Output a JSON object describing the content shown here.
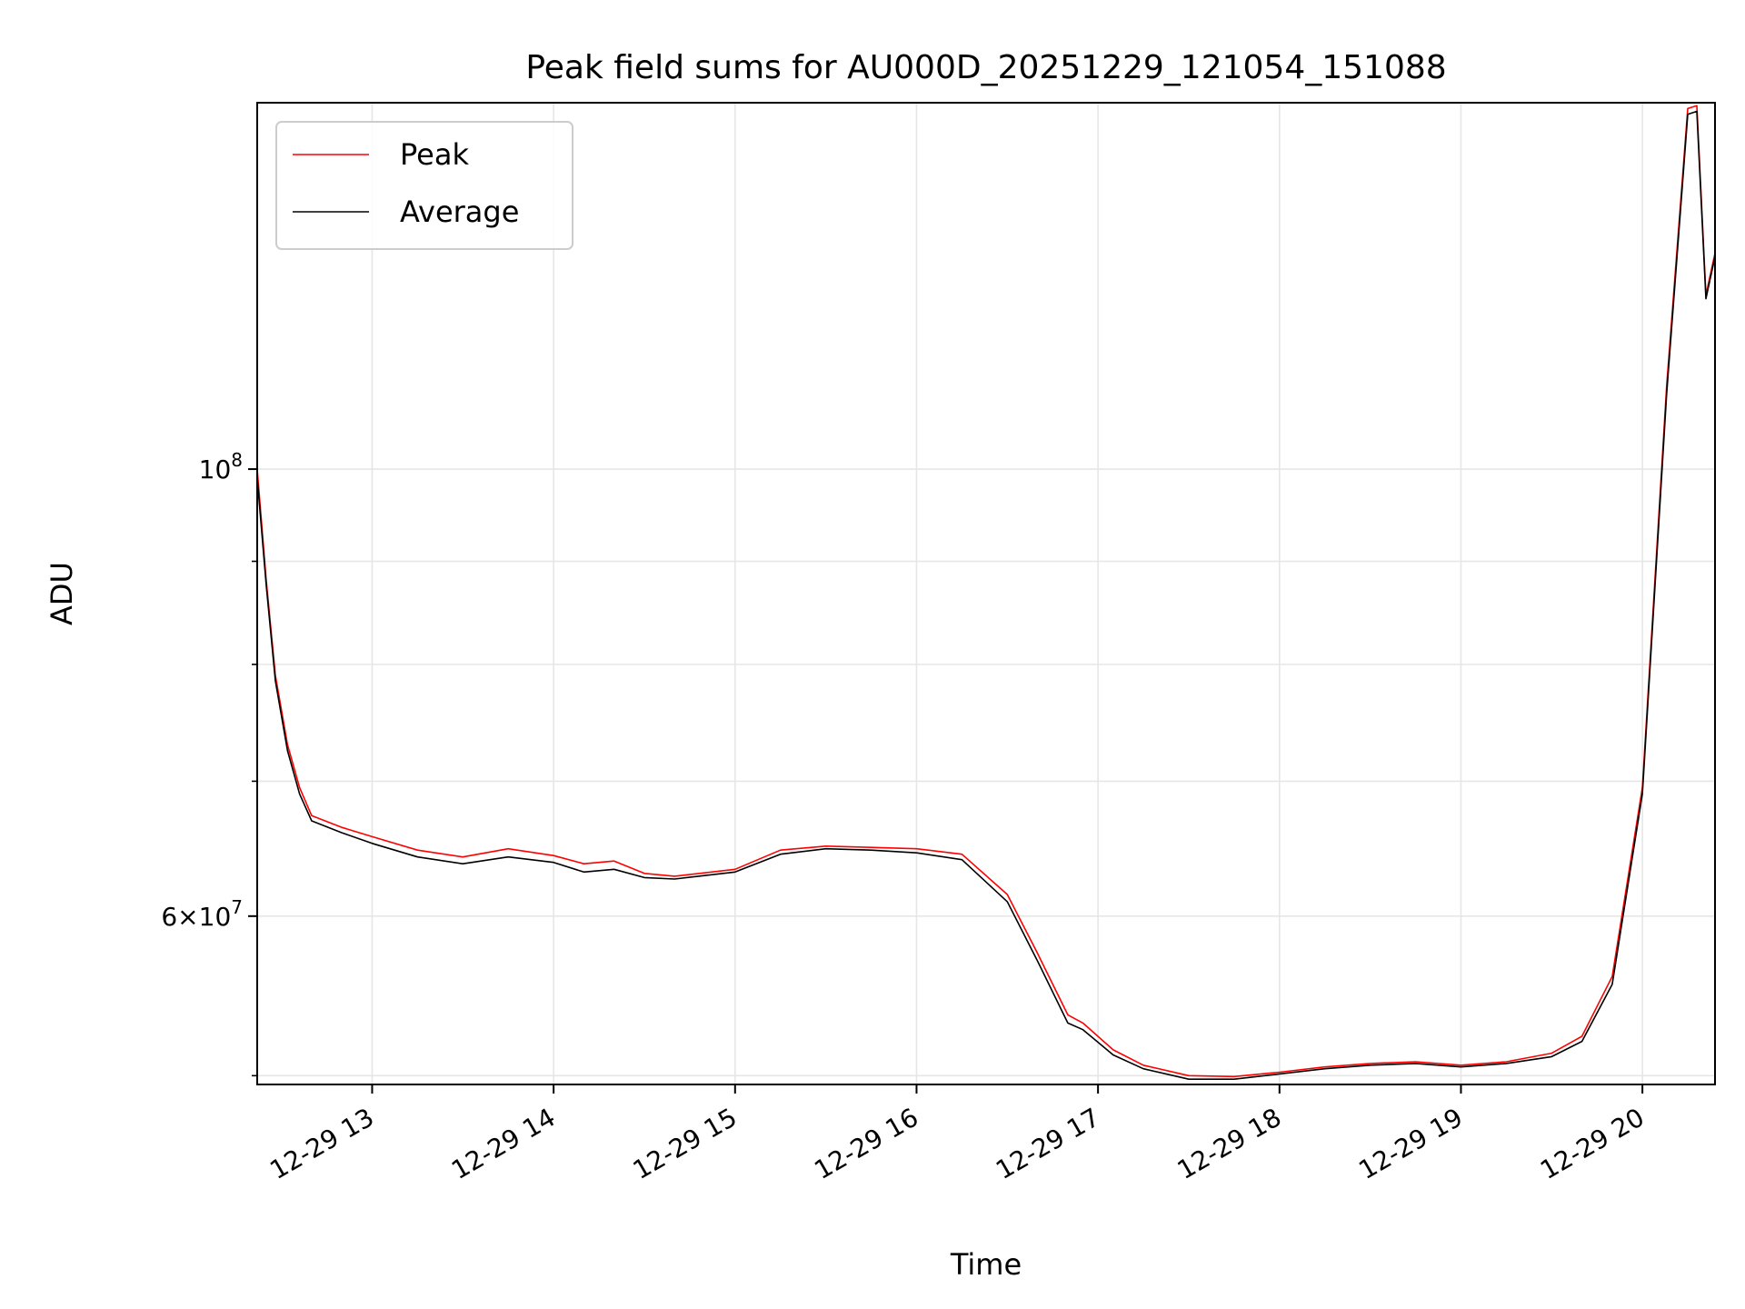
{
  "chart_data": {
    "type": "line",
    "title": "Peak field sums for AU000D_20251229_121054_151088",
    "xlabel": "Time",
    "ylabel": "ADU",
    "yscale": "log",
    "xlim": [
      "2025-12-29 12:22",
      "2025-12-29 20:24"
    ],
    "ylim": [
      49500000,
      152000000
    ],
    "grid": true,
    "legend": "upper left",
    "x_ticks": [
      "12-29 13",
      "12-29 14",
      "12-29 15",
      "12-29 16",
      "12-29 17",
      "12-29 18",
      "12-29 19",
      "12-29 20"
    ],
    "y_tick_labels": [
      {
        "value": 100000000,
        "base": "10",
        "exp": "8"
      },
      {
        "value": 60000000,
        "coef": "6",
        "base": "10",
        "exp": "7"
      }
    ],
    "y_minor_ticks": [
      50000000,
      70000000,
      80000000,
      90000000
    ],
    "series": [
      {
        "name": "Peak",
        "color": "#ff0000",
        "x": [
          "2025-12-29 12:22",
          "2025-12-29 12:25",
          "2025-12-29 12:28",
          "2025-12-29 12:32",
          "2025-12-29 12:36",
          "2025-12-29 12:40",
          "2025-12-29 12:50",
          "2025-12-29 13:00",
          "2025-12-29 13:15",
          "2025-12-29 13:30",
          "2025-12-29 13:45",
          "2025-12-29 14:00",
          "2025-12-29 14:10",
          "2025-12-29 14:20",
          "2025-12-29 14:30",
          "2025-12-29 14:40",
          "2025-12-29 15:00",
          "2025-12-29 15:15",
          "2025-12-29 15:30",
          "2025-12-29 15:45",
          "2025-12-29 16:00",
          "2025-12-29 16:15",
          "2025-12-29 16:30",
          "2025-12-29 16:40",
          "2025-12-29 16:50",
          "2025-12-29 16:55",
          "2025-12-29 17:05",
          "2025-12-29 17:15",
          "2025-12-29 17:30",
          "2025-12-29 17:45",
          "2025-12-29 18:00",
          "2025-12-29 18:15",
          "2025-12-29 18:30",
          "2025-12-29 18:45",
          "2025-12-29 19:00",
          "2025-12-29 19:15",
          "2025-12-29 19:30",
          "2025-12-29 19:40",
          "2025-12-29 19:50",
          "2025-12-29 20:00",
          "2025-12-29 20:08",
          "2025-12-29 20:15",
          "2025-12-29 20:18",
          "2025-12-29 20:21",
          "2025-12-29 20:24"
        ],
        "y": [
          100000000,
          88000000,
          79000000,
          73000000,
          69500000,
          67300000,
          66400000,
          65700000,
          64700000,
          64200000,
          64800000,
          64300000,
          63700000,
          63900000,
          63000000,
          62800000,
          63300000,
          64700000,
          65000000,
          64900000,
          64800000,
          64400000,
          61500000,
          57500000,
          53600000,
          53100000,
          51500000,
          50600000,
          50000000,
          49950000,
          50200000,
          50500000,
          50700000,
          50800000,
          50600000,
          50800000,
          51300000,
          52300000,
          56000000,
          69500000,
          110000000,
          151000000,
          151500000,
          122000000,
          128000000
        ]
      },
      {
        "name": "Average",
        "color": "#000000",
        "x": [
          "2025-12-29 12:22",
          "2025-12-29 12:25",
          "2025-12-29 12:28",
          "2025-12-29 12:32",
          "2025-12-29 12:36",
          "2025-12-29 12:40",
          "2025-12-29 12:50",
          "2025-12-29 13:00",
          "2025-12-29 13:15",
          "2025-12-29 13:30",
          "2025-12-29 13:45",
          "2025-12-29 14:00",
          "2025-12-29 14:10",
          "2025-12-29 14:20",
          "2025-12-29 14:30",
          "2025-12-29 14:40",
          "2025-12-29 15:00",
          "2025-12-29 15:15",
          "2025-12-29 15:30",
          "2025-12-29 15:45",
          "2025-12-29 16:00",
          "2025-12-29 16:15",
          "2025-12-29 16:30",
          "2025-12-29 16:40",
          "2025-12-29 16:50",
          "2025-12-29 16:55",
          "2025-12-29 17:05",
          "2025-12-29 17:15",
          "2025-12-29 17:30",
          "2025-12-29 17:45",
          "2025-12-29 18:00",
          "2025-12-29 18:15",
          "2025-12-29 18:30",
          "2025-12-29 18:45",
          "2025-12-29 19:00",
          "2025-12-29 19:15",
          "2025-12-29 19:30",
          "2025-12-29 19:40",
          "2025-12-29 19:50",
          "2025-12-29 20:00",
          "2025-12-29 20:08",
          "2025-12-29 20:15",
          "2025-12-29 20:18",
          "2025-12-29 20:21",
          "2025-12-29 20:24"
        ],
        "y": [
          99000000,
          87500000,
          78500000,
          72500000,
          69000000,
          66900000,
          66000000,
          65200000,
          64200000,
          63700000,
          64200000,
          63800000,
          63100000,
          63300000,
          62700000,
          62600000,
          63100000,
          64400000,
          64800000,
          64700000,
          64500000,
          64000000,
          61000000,
          57000000,
          53100000,
          52700000,
          51200000,
          50400000,
          49800000,
          49800000,
          50100000,
          50400000,
          50600000,
          50700000,
          50500000,
          50700000,
          51100000,
          52000000,
          55500000,
          69000000,
          109000000,
          150000000,
          150500000,
          121500000,
          127500000
        ]
      }
    ]
  }
}
